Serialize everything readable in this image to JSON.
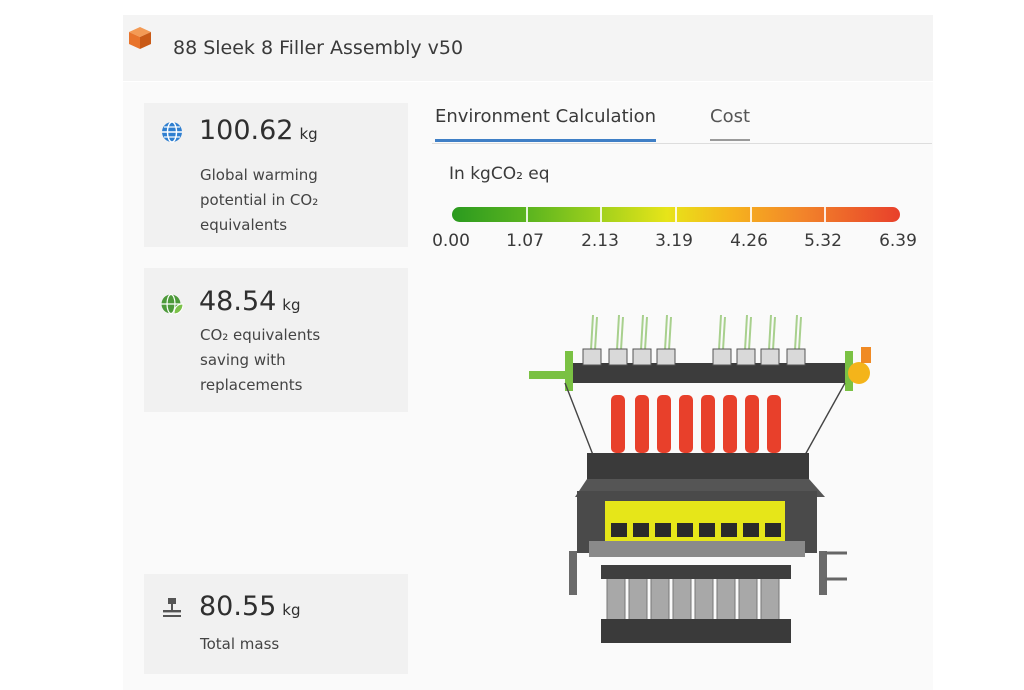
{
  "header": {
    "title": "88 Sleek 8 Filler Assembly v50",
    "icon": "cube-icon",
    "icon_color": "#e8742c"
  },
  "metrics": [
    {
      "icon": "globe-icon",
      "value": "100.62",
      "unit": "kg",
      "desc_lines": [
        "Global warming",
        "potential in CO₂",
        "equivalents"
      ]
    },
    {
      "icon": "eco-globe-leaf-icon",
      "value": "48.54",
      "unit": "kg",
      "desc_lines": [
        "CO₂ equivalents",
        "saving with",
        "replacements"
      ]
    },
    {
      "icon": "scale-icon",
      "value": "80.55",
      "unit": "kg",
      "desc_lines": [
        "Total mass"
      ]
    }
  ],
  "tabs": [
    {
      "label": "Environment Calculation",
      "active": true
    },
    {
      "label": "Cost",
      "active": false
    }
  ],
  "legend": {
    "unit_label": "In kgCO₂ eq",
    "ticks": [
      "0.00",
      "1.07",
      "2.13",
      "3.19",
      "4.26",
      "5.32",
      "6.39"
    ],
    "colors": [
      "#2a9a1f",
      "#9ccf1c",
      "#e7e419",
      "#f2852a",
      "#e8402b"
    ]
  },
  "colors": {
    "accent": "#3f7fc6",
    "card_bg": "#f1f1f1"
  }
}
